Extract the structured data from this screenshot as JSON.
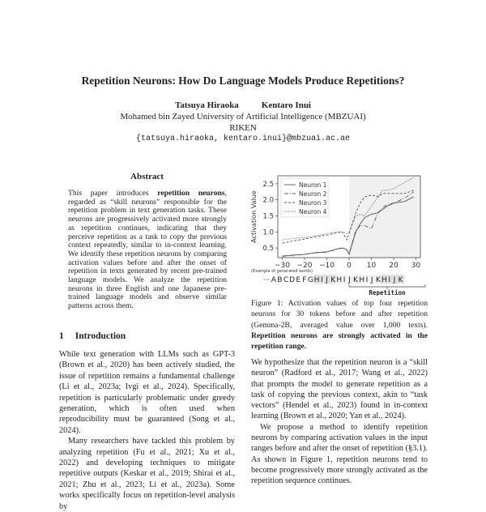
{
  "title": "Repetition Neurons: How Do Language Models Produce Repetitions?",
  "authors": [
    "Tatsuya Hiraoka",
    "Kentaro Inui"
  ],
  "affiliations": [
    "Mohamed bin Zayed University of Artificial Intelligence (MBZUAI)",
    "RIKEN"
  ],
  "email": "{tatsuya.hiraoka, kentaro.inui}@mbzuai.ac.ae",
  "abstract": {
    "heading": "Abstract",
    "pre": "This paper introduces ",
    "bold": "repetition neurons",
    "post": ", regarded as “skill neurons” responsible for the repetition problem in text generation tasks. These neurons are progressively activated more strongly as repetition continues, indicating that they perceive repetition as a task to copy the previous context repeatedly, similar to in-context learning. We identify these repetition neurons by comparing activation values before and after the onset of repetition in texts generated by recent pre-trained language models. We analyze the repetition neurons in three English and one Japanese pre-trained language models and observe similar patterns across them."
  },
  "section": {
    "number": "1",
    "title": "Introduction"
  },
  "intro": [
    "While text generation with LLMs such as GPT-3 (Brown et al., 2020) has been actively studied, the issue of repetition remains a fundamental challenge (Li et al., 2023a; Ivgi et al., 2024). Specifically, repetition is particularly problematic under greedy generation, which is often used when reproducibility must be guaranteed (Song et al., 2024).",
    "Many researchers have tackled this problem by analyzing repetition (Fu et al., 2021; Xu et al., 2022) and developing techniques to mitigate repetitive outputs (Keskar et al., 2019; Shirai et al., 2021; Zhu et al., 2023; Li et al., 2023a). Some works specifically focus on repetition-level analysis by"
  ],
  "caption": {
    "pre": "Figure 1: Activation values of top four repetition neurons for 30 tokens before and after repetition (Gemma-2B, averaged value over 1,000 texts). ",
    "bold": "Repetition neurons are strongly activated in the repetition range."
  },
  "body2": [
    "We hypothesize that the repetition neuron is a “skill neuron” (Radford et al., 2017; Wang et al., 2022) that prompts the model to generate repetition as a task of copying the previous context, akin to “task vectors” (Hendel et al., 2023) found in in-context learning (Brown et al., 2020; Yan et al., 2024).",
    "We propose a method to identify repetition neurons by comparing activation values in the input ranges before and after the onset of repetition (§3.1). As shown in Figure 1, repetition neurons tend to become progressively more strongly activated as the repetition sequence continues."
  ],
  "chart_data": {
    "type": "line",
    "ylabel": "Activation Value",
    "xlabel": "",
    "xlim": [
      -32,
      32
    ],
    "ylim": [
      0.2,
      2.75
    ],
    "xticks": [
      -30,
      -20,
      -10,
      0,
      10,
      20,
      30
    ],
    "yticks": [
      0.5,
      1.0,
      1.5,
      2.0,
      2.5
    ],
    "shaded_range": [
      0,
      30
    ],
    "legend": "top-left",
    "x": [
      -30,
      -25,
      -20,
      -15,
      -10,
      -5,
      -3,
      -1,
      0,
      3,
      5,
      7,
      10,
      13,
      15,
      17,
      20,
      25,
      29
    ],
    "series": [
      {
        "name": "Neuron 1",
        "style": "solid",
        "values": [
          0.25,
          0.28,
          0.3,
          0.36,
          0.38,
          0.48,
          0.5,
          0.45,
          0.3,
          1.0,
          1.25,
          1.45,
          1.55,
          1.6,
          1.7,
          1.8,
          1.9,
          1.95,
          2.1
        ]
      },
      {
        "name": "Neuron 2",
        "style": "dash-dot",
        "values": [
          0.24,
          0.27,
          0.3,
          0.35,
          0.37,
          0.47,
          0.5,
          0.44,
          0.32,
          1.05,
          1.2,
          1.2,
          1.1,
          1.6,
          1.75,
          1.85,
          1.9,
          2.05,
          2.25
        ]
      },
      {
        "name": "Neuron 3",
        "style": "dashed",
        "values": [
          0.65,
          0.72,
          0.78,
          0.85,
          0.9,
          0.98,
          1.0,
          0.75,
          0.95,
          1.6,
          1.9,
          2.1,
          2.15,
          2.1,
          2.2,
          2.2,
          2.2,
          2.2,
          2.3
        ]
      },
      {
        "name": "Neuron 4",
        "style": "dotted",
        "values": [
          0.75,
          0.8,
          0.82,
          0.88,
          0.95,
          1.0,
          1.0,
          0.95,
          1.0,
          1.5,
          1.55,
          1.5,
          1.8,
          2.1,
          2.3,
          2.3,
          2.35,
          2.55,
          2.7
        ]
      }
    ],
    "example_label": "(Example of generated words)",
    "example_tokens": [
      "···",
      "A",
      "B",
      "C",
      "D",
      "E",
      "F",
      "G",
      "H",
      "I",
      "J",
      "K",
      "H",
      "I",
      "J",
      "K",
      "H",
      "I",
      "J",
      "K",
      "H",
      "I",
      "J",
      "K"
    ],
    "repetition_label": "Repetition"
  },
  "colors": {
    "series": "#555555",
    "shade": "#f0f0f0"
  }
}
